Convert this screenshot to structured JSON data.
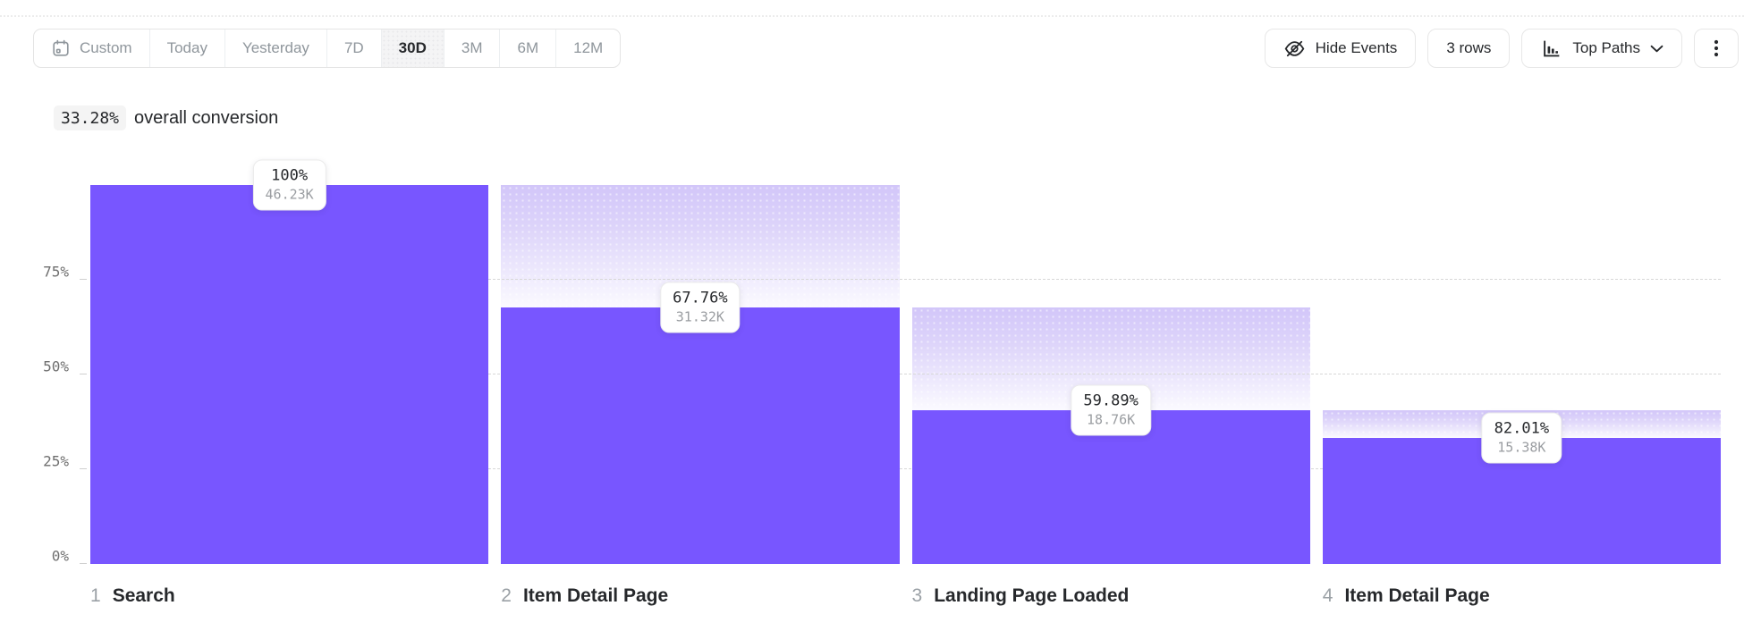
{
  "toolbar": {
    "date_picker": {
      "items": [
        {
          "label": "Custom",
          "has_icon": true,
          "selected": false
        },
        {
          "label": "Today",
          "has_icon": false,
          "selected": false
        },
        {
          "label": "Yesterday",
          "has_icon": false,
          "selected": false
        },
        {
          "label": "7D",
          "has_icon": false,
          "selected": false
        },
        {
          "label": "30D",
          "has_icon": false,
          "selected": true
        },
        {
          "label": "3M",
          "has_icon": false,
          "selected": false
        },
        {
          "label": "6M",
          "has_icon": false,
          "selected": false
        },
        {
          "label": "12M",
          "has_icon": false,
          "selected": false
        }
      ]
    },
    "hide_events_label": "Hide Events",
    "rows_label": "3 rows",
    "view_mode_label": "Top Paths"
  },
  "summary": {
    "conversion_value": "33.28%",
    "conversion_text": "overall conversion"
  },
  "chart_data": {
    "type": "bar",
    "subtype": "funnel",
    "title": "33.28% overall conversion",
    "xlabel": "",
    "ylabel": "",
    "ylim": [
      0,
      100
    ],
    "grid": "dashed horizontal at 25/50/75",
    "legend": "none",
    "bar_color": "#7856FF",
    "dropoff_gradient_top_color": "#d2c6f9",
    "yticks": [
      {
        "label": "75%",
        "value": 75
      },
      {
        "label": "50%",
        "value": 50
      },
      {
        "label": "25%",
        "value": 25
      },
      {
        "label": "0%",
        "value": 0
      }
    ],
    "gridline_values": [
      75,
      50,
      25
    ],
    "steps": [
      {
        "index": "1",
        "name": "Search",
        "conversion_label": "100%",
        "count_label": "46.23K",
        "overall_pct": 100,
        "prev_overall_pct": null
      },
      {
        "index": "2",
        "name": "Item Detail Page",
        "conversion_label": "67.76%",
        "count_label": "31.32K",
        "overall_pct": 67.75,
        "prev_overall_pct": 100
      },
      {
        "index": "3",
        "name": "Landing Page Loaded",
        "conversion_label": "59.89%",
        "count_label": "18.76K",
        "overall_pct": 40.58,
        "prev_overall_pct": 67.75
      },
      {
        "index": "4",
        "name": "Item Detail Page",
        "conversion_label": "82.01%",
        "count_label": "15.38K",
        "overall_pct": 33.27,
        "prev_overall_pct": 40.58
      }
    ]
  }
}
